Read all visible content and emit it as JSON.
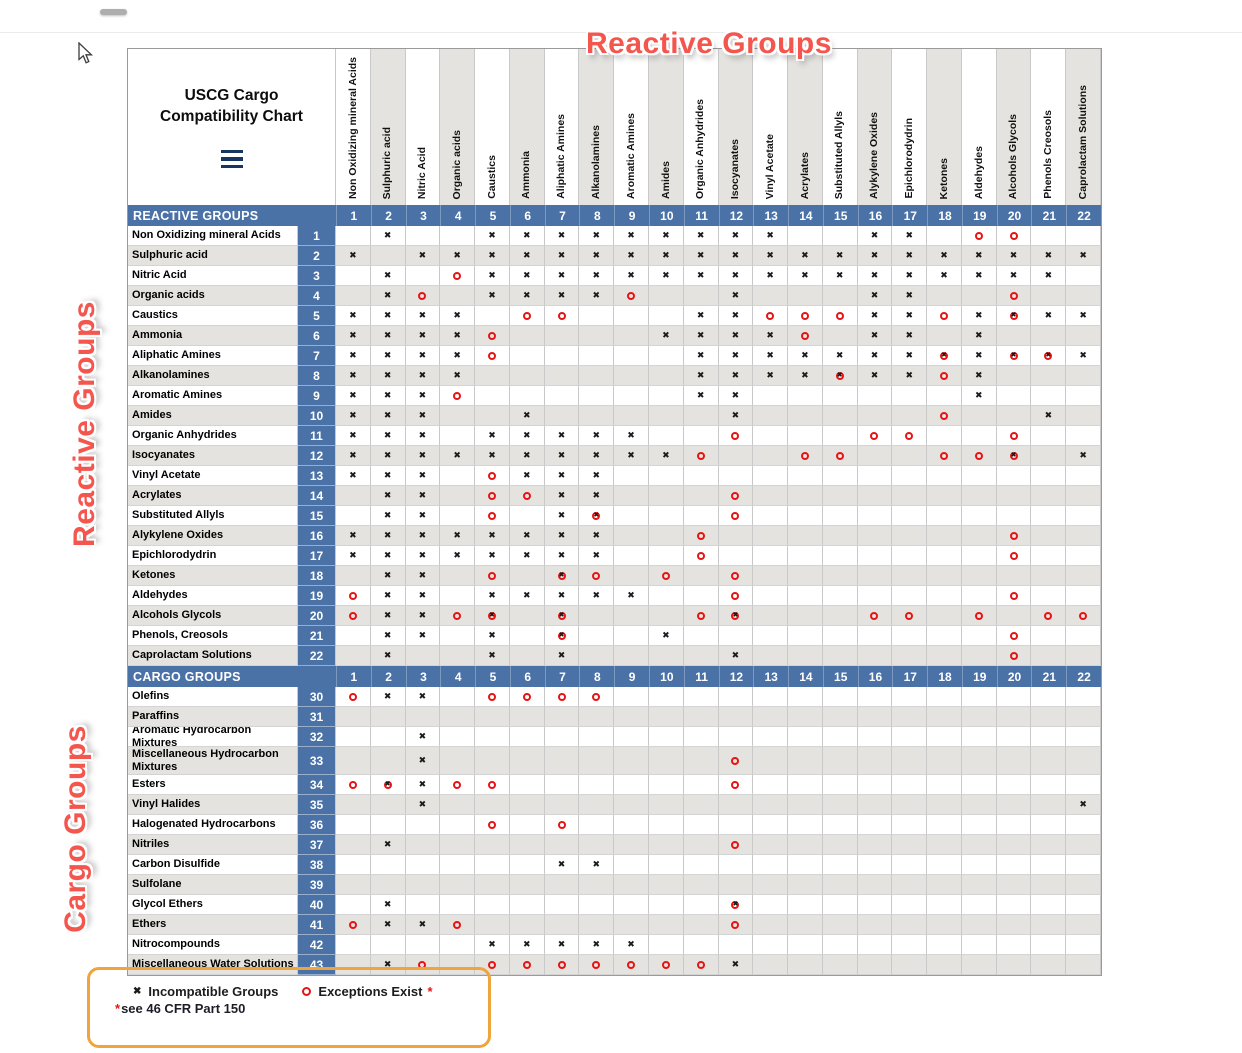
{
  "annotations": {
    "top_label": "Reactive Groups",
    "reactive_side_label": "Reactive Groups",
    "cargo_side_label": "Cargo Groups"
  },
  "symbols": {
    "incompatible_mark": "✖",
    "exception_mark": "circle-o"
  },
  "colors": {
    "header_blue": "#4a72a7",
    "stripe_gray": "#e4e3df",
    "mark_red": "#e81313",
    "annotation_red": "#f4564e",
    "legend_border_orange": "#f0a43c",
    "menu_icon_navy": "#17375e"
  },
  "table": {
    "title": "USCG Cargo Compatibility Chart",
    "col_numbers": [
      "1",
      "2",
      "3",
      "4",
      "5",
      "6",
      "7",
      "8",
      "9",
      "10",
      "11",
      "12",
      "13",
      "14",
      "15",
      "16",
      "17",
      "18",
      "19",
      "20",
      "21",
      "22"
    ],
    "columns": [
      "Non Oxidizing mineral Acids",
      "Sulphuric acid",
      "Nitric Acid",
      "Organic acids",
      "Caustics",
      "Ammonia",
      "Aliphatic Amines",
      "Alkanolamines",
      "Aromatic Amines",
      "Amides",
      "Organic Anhydrides",
      "Isocyanates",
      "Vinyl Acetate",
      "Acrylates",
      "Substituted Allyls",
      "Alykylene Oxides",
      "Epichlorodydrin",
      "Ketones",
      "Aldehydes",
      "Alcohols Glycols",
      "Phenols  Creosols",
      "Caprolactam Solutions"
    ],
    "sections": [
      {
        "header": "REACTIVE GROUPS",
        "rows": [
          {
            "num": "1",
            "label": "Non Oxidizing mineral Acids",
            "cells": ".x..xxxxxxxxx..xx.oo.."
          },
          {
            "num": "2",
            "label": "Sulphuric acid",
            "cells": "x.xxxxxxxxxxxxxxxxxxxx"
          },
          {
            "num": "3",
            "label": "Nitric Acid",
            "cells": ".x.oxxxxxxxxxxxxxxxxx."
          },
          {
            "num": "4",
            "label": "Organic acids",
            "cells": ".xo.xxxxo..x...xx..o.."
          },
          {
            "num": "5",
            "label": "Caustics",
            "cells": "xxxx.oo...xxoooxxoxbxx"
          },
          {
            "num": "6",
            "label": "Ammonia",
            "cells": "xxxxo....xxxxo.xx.x..."
          },
          {
            "num": "7",
            "label": "Aliphatic Amines",
            "cells": "xxxxo.....xxxxxxxbxbbx"
          },
          {
            "num": "8",
            "label": "Alkanolamines",
            "cells": "xxxx......xxxxbxxox..."
          },
          {
            "num": "9",
            "label": "Aromatic Amines",
            "cells": "xxxo......xx......x..."
          },
          {
            "num": "10",
            "label": "Amides",
            "cells": "xxx..x.....x.....o..x."
          },
          {
            "num": "11",
            "label": "Organic Anhydrides",
            "cells": "xxx.xxxxx..o...oo..o.."
          },
          {
            "num": "12",
            "label": "Isocyanates",
            "cells": "xxxxxxxxxxo..oo..oob.x"
          },
          {
            "num": "13",
            "label": "Vinyl Acetate",
            "cells": "xxx.oxxx.............."
          },
          {
            "num": "14",
            "label": "Acrylates",
            "cells": ".xx.ooxx...o.........."
          },
          {
            "num": "15",
            "label": "Substituted Allyls",
            "cells": ".xx.o.xb...o.........."
          },
          {
            "num": "16",
            "label": "Alykylene Oxides",
            "cells": "xxxxxxxx..o........o.."
          },
          {
            "num": "17",
            "label": "Epichlorodydrin",
            "cells": "xxxxxxxx..o........o.."
          },
          {
            "num": "18",
            "label": "Ketones",
            "cells": ".xx.o.bo.o.o.........."
          },
          {
            "num": "19",
            "label": "Aldehydes",
            "cells": "oxx.xxxxx..o.......o.."
          },
          {
            "num": "20",
            "label": "Alcohols Glycols",
            "cells": "oxxob.b...ob...oo.o.oo"
          },
          {
            "num": "21",
            "label": "Phenols, Creosols",
            "cells": ".xx.x.b..x.........o.."
          },
          {
            "num": "22",
            "label": "Caprolactam Solutions",
            "cells": ".x..x.x....x.......o.."
          }
        ]
      },
      {
        "header": "CARGO GROUPS",
        "rows": [
          {
            "num": "30",
            "label": "Olefins",
            "cells": "oxx.oooo.............."
          },
          {
            "num": "31",
            "label": "Paraffins",
            "cells": "......................"
          },
          {
            "num": "32",
            "label": "Aromatic Hydrocarbon Mixtures",
            "cells": "..x..................."
          },
          {
            "num": "33",
            "label": "Miscellaneous Hydrocarbon Mixtures",
            "cells": "..x........o..........",
            "tall": true
          },
          {
            "num": "34",
            "label": "Esters",
            "cells": "obxoo......o.........."
          },
          {
            "num": "35",
            "label": "Vinyl Halides",
            "cells": "..x..................x"
          },
          {
            "num": "36",
            "label": "Halogenated Hydrocarbons",
            "cells": "....o.o..............."
          },
          {
            "num": "37",
            "label": "Nitriles",
            "cells": ".x.........o.........."
          },
          {
            "num": "38",
            "label": "Carbon Disulfide",
            "cells": "......xx.............."
          },
          {
            "num": "39",
            "label": "Sulfolane",
            "cells": "......................"
          },
          {
            "num": "40",
            "label": "Glycol Ethers",
            "cells": ".x.........b.........."
          },
          {
            "num": "41",
            "label": "Ethers",
            "cells": "oxxo.......o.........."
          },
          {
            "num": "42",
            "label": "Nitrocompounds",
            "cells": "....xxxxx............."
          },
          {
            "num": "43",
            "label": "Miscellaneous Water Solutions",
            "cells": ".xo.ooooooox.........."
          }
        ]
      }
    ]
  },
  "legend": {
    "incompatible_label": "Incompatible Groups",
    "exceptions_label": "Exceptions Exist",
    "exceptions_asterisk": "*",
    "note_asterisk": "*",
    "note": "see 46 CFR Part 150"
  }
}
